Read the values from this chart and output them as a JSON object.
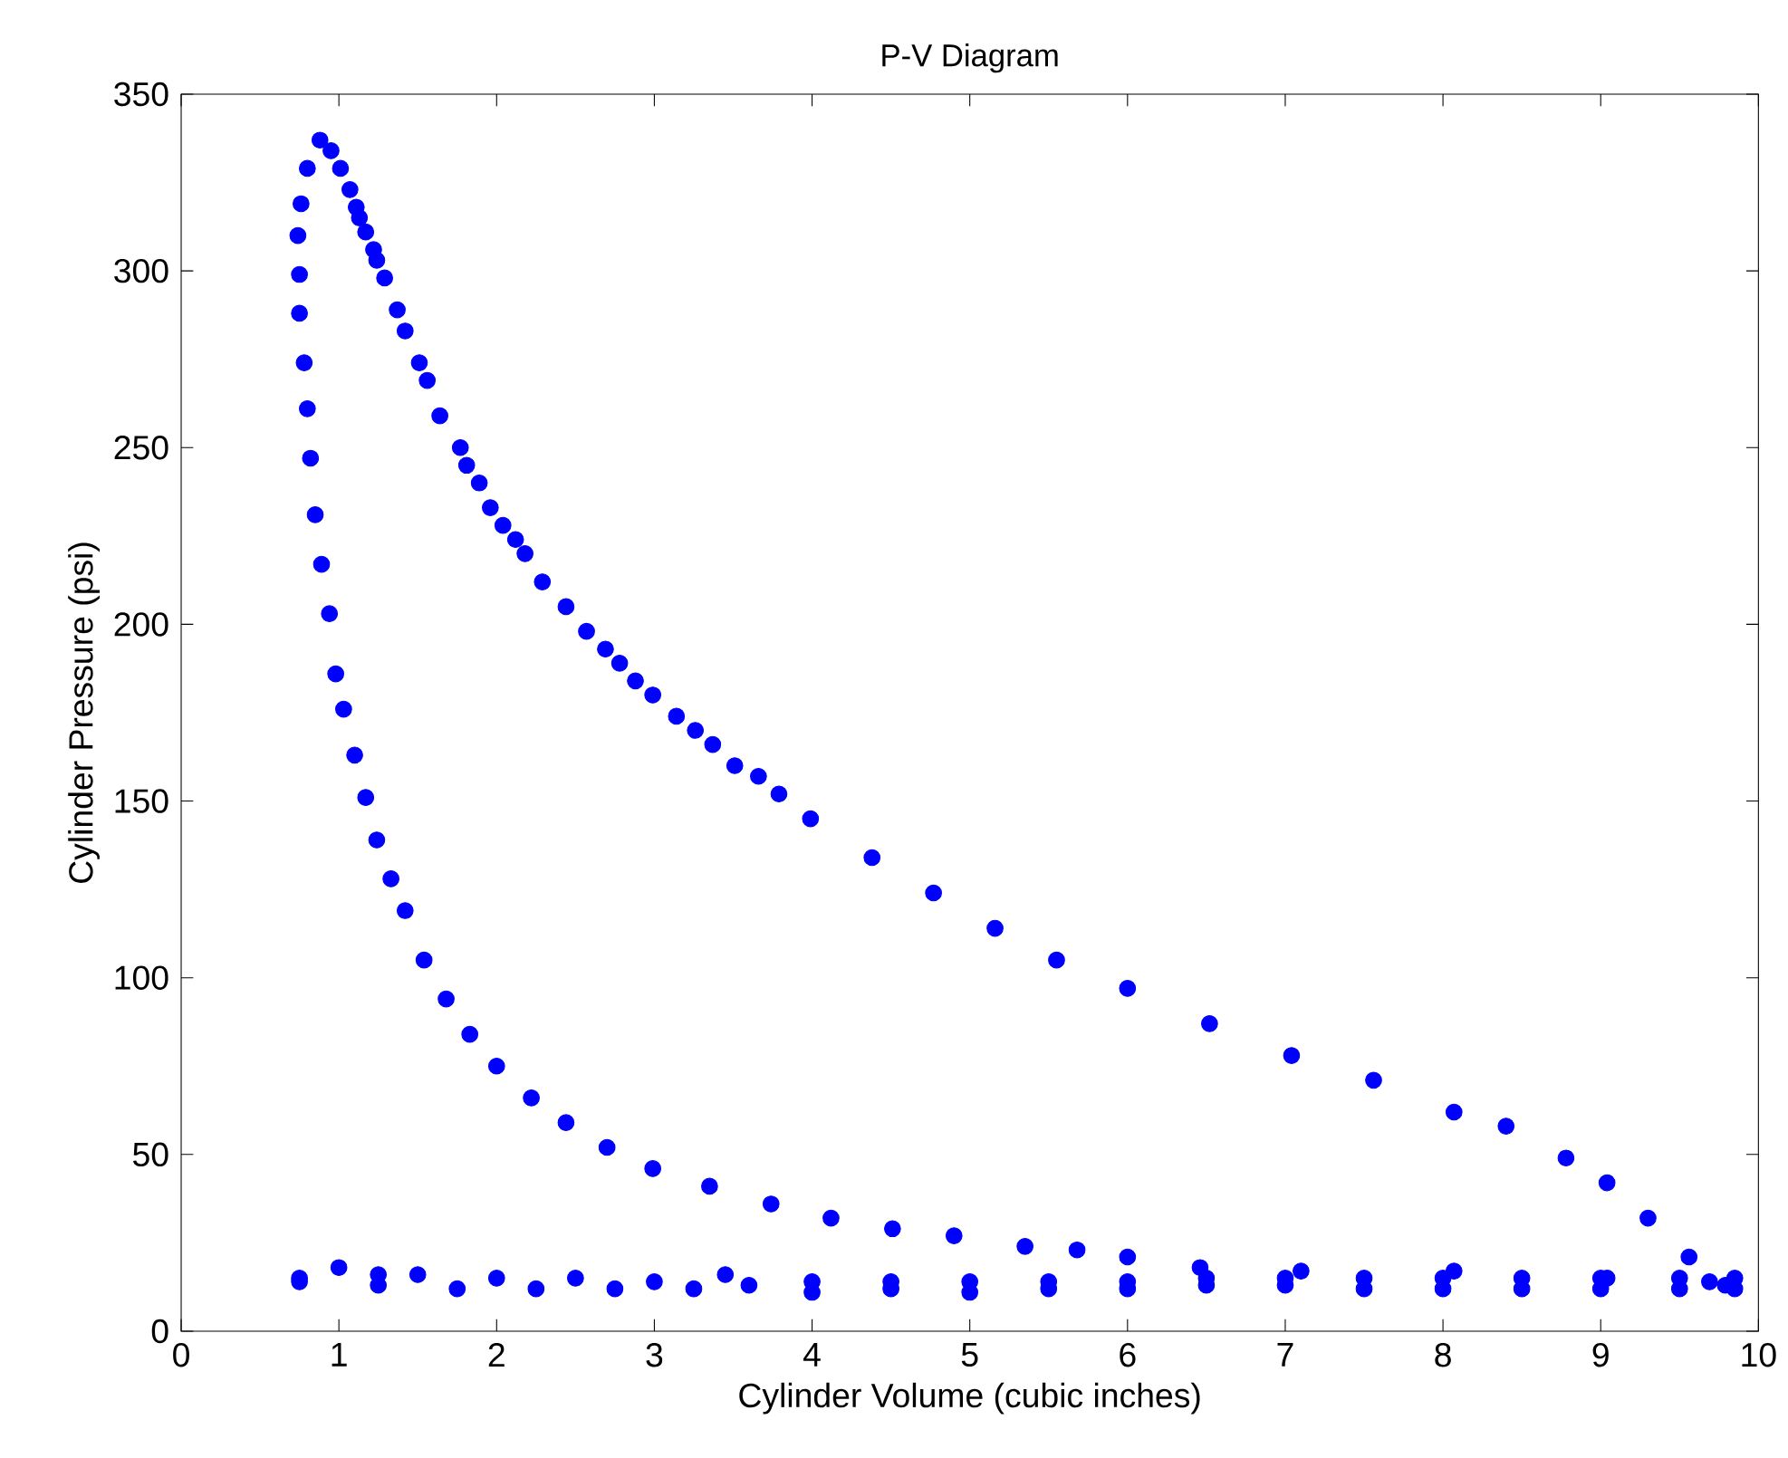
{
  "chart_data": {
    "type": "scatter",
    "title": "P-V Diagram",
    "xlabel": "Cylinder Volume (cubic inches)",
    "ylabel": "Cylinder Pressure (psi)",
    "x": [
      0.88,
      0.95,
      1.01,
      1.07,
      1.11,
      1.13,
      1.17,
      1.22,
      1.24,
      1.29,
      1.37,
      1.42,
      1.51,
      1.56,
      1.64,
      1.77,
      1.81,
      1.89,
      1.96,
      2.04,
      2.12,
      2.18,
      2.29,
      2.44,
      2.57,
      2.69,
      2.78,
      2.88,
      2.99,
      3.14,
      3.26,
      3.37,
      3.51,
      3.66,
      3.79,
      3.99,
      4.38,
      4.77,
      5.16,
      5.55,
      6.0,
      6.52,
      7.04,
      7.56,
      8.07,
      8.4,
      8.78,
      9.04,
      9.3,
      9.56,
      9.79,
      0.8,
      0.76,
      0.74,
      0.75,
      0.75,
      0.78,
      0.8,
      0.82,
      0.85,
      0.89,
      0.94,
      0.98,
      1.03,
      1.1,
      1.17,
      1.24,
      1.33,
      1.42,
      1.54,
      1.68,
      1.83,
      2.0,
      2.22,
      2.44,
      2.7,
      2.99,
      3.35,
      3.74,
      4.12,
      4.51,
      4.9,
      5.35,
      5.68,
      6.0,
      6.46,
      7.1,
      8.07,
      9.04,
      9.69,
      0.75,
      1.0,
      1.25,
      1.5,
      2.0,
      2.5,
      3.0,
      3.45,
      4.0,
      4.5,
      5.0,
      5.5,
      6.0,
      6.5,
      7.0,
      7.5,
      8.0,
      8.5,
      9.0,
      9.5,
      9.85,
      0.75,
      1.25,
      1.75,
      2.25,
      2.75,
      3.25,
      3.6,
      4.0,
      4.5,
      5.0,
      5.5,
      6.0,
      6.5,
      7.0,
      7.5,
      8.0,
      8.5,
      9.0,
      9.5,
      9.85
    ],
    "values": [
      337,
      334,
      329,
      323,
      318,
      315,
      311,
      306,
      303,
      298,
      289,
      283,
      274,
      269,
      259,
      250,
      245,
      240,
      233,
      228,
      224,
      220,
      212,
      205,
      198,
      193,
      189,
      184,
      180,
      174,
      170,
      166,
      160,
      157,
      152,
      145,
      134,
      124,
      114,
      105,
      97,
      87,
      78,
      71,
      62,
      58,
      49,
      42,
      32,
      21,
      13,
      329,
      319,
      310,
      299,
      288,
      274,
      261,
      247,
      231,
      217,
      203,
      186,
      176,
      163,
      151,
      139,
      128,
      119,
      105,
      94,
      84,
      75,
      66,
      59,
      52,
      46,
      41,
      36,
      32,
      29,
      27,
      24,
      23,
      21,
      18,
      17,
      17,
      15,
      14,
      15,
      18,
      16,
      16,
      15,
      15,
      14,
      16,
      14,
      14,
      14,
      14,
      14,
      15,
      15,
      15,
      15,
      15,
      15,
      15,
      15,
      14,
      13,
      12,
      12,
      12,
      12,
      13,
      11,
      12,
      11,
      12,
      12,
      13,
      13,
      12,
      12,
      12,
      12,
      12,
      12
    ],
    "color": "#0000ff",
    "marker": "circle",
    "xlim": [
      0,
      10
    ],
    "ylim": [
      0,
      350
    ],
    "xticks": [
      0,
      1,
      2,
      3,
      4,
      5,
      6,
      7,
      8,
      9,
      10
    ],
    "yticks": [
      0,
      50,
      100,
      150,
      200,
      250,
      300,
      350
    ]
  }
}
